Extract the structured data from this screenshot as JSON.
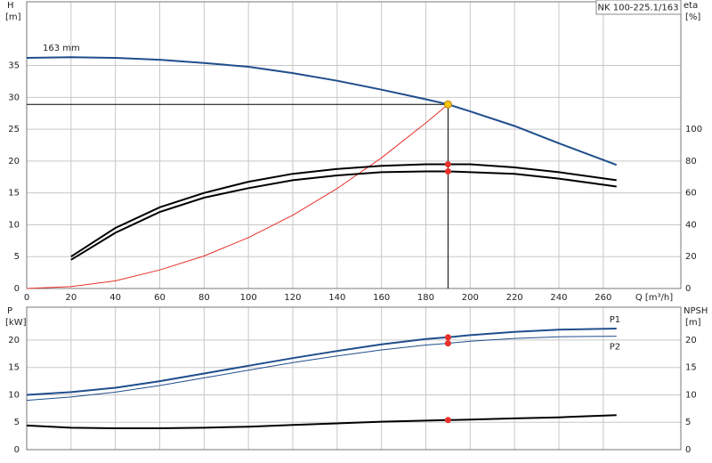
{
  "title": "NK 100-225.1/163",
  "chart_data": [
    {
      "type": "line",
      "xlabel": "Q [m³/h]",
      "ylabel": "H",
      "yunit": "[m]",
      "y2label": "eta",
      "y2unit": "[%]",
      "x": [
        0,
        20,
        40,
        60,
        80,
        100,
        120,
        140,
        160,
        180,
        190,
        200,
        220,
        240,
        266
      ],
      "xlim": [
        0,
        295
      ],
      "xticks": [
        0,
        20,
        40,
        60,
        80,
        100,
        120,
        140,
        160,
        180,
        200,
        220,
        240,
        260
      ],
      "ylim": [
        0,
        45
      ],
      "yticks": [
        0,
        5,
        10,
        15,
        20,
        25,
        30,
        35
      ],
      "y2lim": [
        0,
        180
      ],
      "y2ticks": [
        0,
        20,
        40,
        60,
        80,
        100
      ],
      "grid": true,
      "show_x_tick_labels": true,
      "duty_point": {
        "x": 190,
        "y": 28.9,
        "color": "#f5c518"
      },
      "series": [
        {
          "name": "163 mm",
          "color": "#1f4e8c",
          "label_position": "start",
          "values": [
            36.2,
            36.3,
            36.2,
            35.9,
            35.4,
            34.8,
            33.8,
            32.6,
            31.2,
            29.7,
            28.9,
            27.8,
            25.5,
            22.8,
            19.4
          ]
        },
        {
          "color": "#e8302a",
          "style": "thin",
          "values": [
            0,
            0.3,
            1.2,
            2.9,
            5.1,
            8.0,
            11.5,
            15.7,
            20.5,
            26.0,
            28.9,
            null,
            null,
            null,
            null
          ]
        },
        {
          "color": "#000000",
          "axis": "y2",
          "marker_color": "#e8302a",
          "values": [
            null,
            20,
            38,
            51,
            60,
            67,
            72,
            75,
            77,
            78,
            78,
            78,
            76,
            73,
            68
          ]
        },
        {
          "color": "#000000",
          "axis": "y2",
          "marker_color": "#e8302a",
          "values": [
            null,
            18,
            35,
            48,
            57,
            63,
            68,
            71,
            73,
            73.5,
            73.5,
            73,
            72,
            69,
            64
          ]
        }
      ]
    },
    {
      "type": "line",
      "ylabel": "P",
      "yunit": "[kW]",
      "y2label": "NPSH",
      "y2unit": "[m]",
      "x": [
        0,
        20,
        40,
        60,
        80,
        100,
        120,
        140,
        160,
        180,
        190,
        200,
        220,
        240,
        266
      ],
      "xlim": [
        0,
        295
      ],
      "xticks": [
        0,
        20,
        40,
        60,
        80,
        100,
        120,
        140,
        160,
        180,
        200,
        220,
        240,
        260
      ],
      "ylim": [
        0,
        26
      ],
      "yticks": [
        0,
        5,
        10,
        15,
        20
      ],
      "y2lim": [
        0,
        26
      ],
      "y2ticks": [
        0,
        5,
        10,
        15,
        20
      ],
      "grid": true,
      "show_x_tick_labels": false,
      "duty_point": {
        "x": 190
      },
      "series": [
        {
          "name": "P1",
          "color": "#1f4e8c",
          "label_position": "end",
          "marker_color": "#e8302a",
          "values": [
            10,
            10.5,
            11.3,
            12.5,
            13.9,
            15.3,
            16.7,
            18.0,
            19.2,
            20.2,
            20.5,
            20.9,
            21.5,
            21.9,
            22.1
          ]
        },
        {
          "name": "P2",
          "color": "#1f4e8c",
          "style": "thin",
          "label_position": "end",
          "marker_color": "#e8302a",
          "values": [
            9,
            9.6,
            10.5,
            11.7,
            13.1,
            14.5,
            15.9,
            17.1,
            18.2,
            19.1,
            19.4,
            19.8,
            20.3,
            20.6,
            20.7
          ]
        },
        {
          "color": "#000000",
          "axis": "y2",
          "marker_color": "#e8302a",
          "values": [
            4.4,
            4.0,
            3.9,
            3.9,
            4.0,
            4.2,
            4.5,
            4.8,
            5.1,
            5.3,
            5.4,
            5.5,
            5.7,
            5.9,
            6.3
          ]
        }
      ]
    }
  ]
}
